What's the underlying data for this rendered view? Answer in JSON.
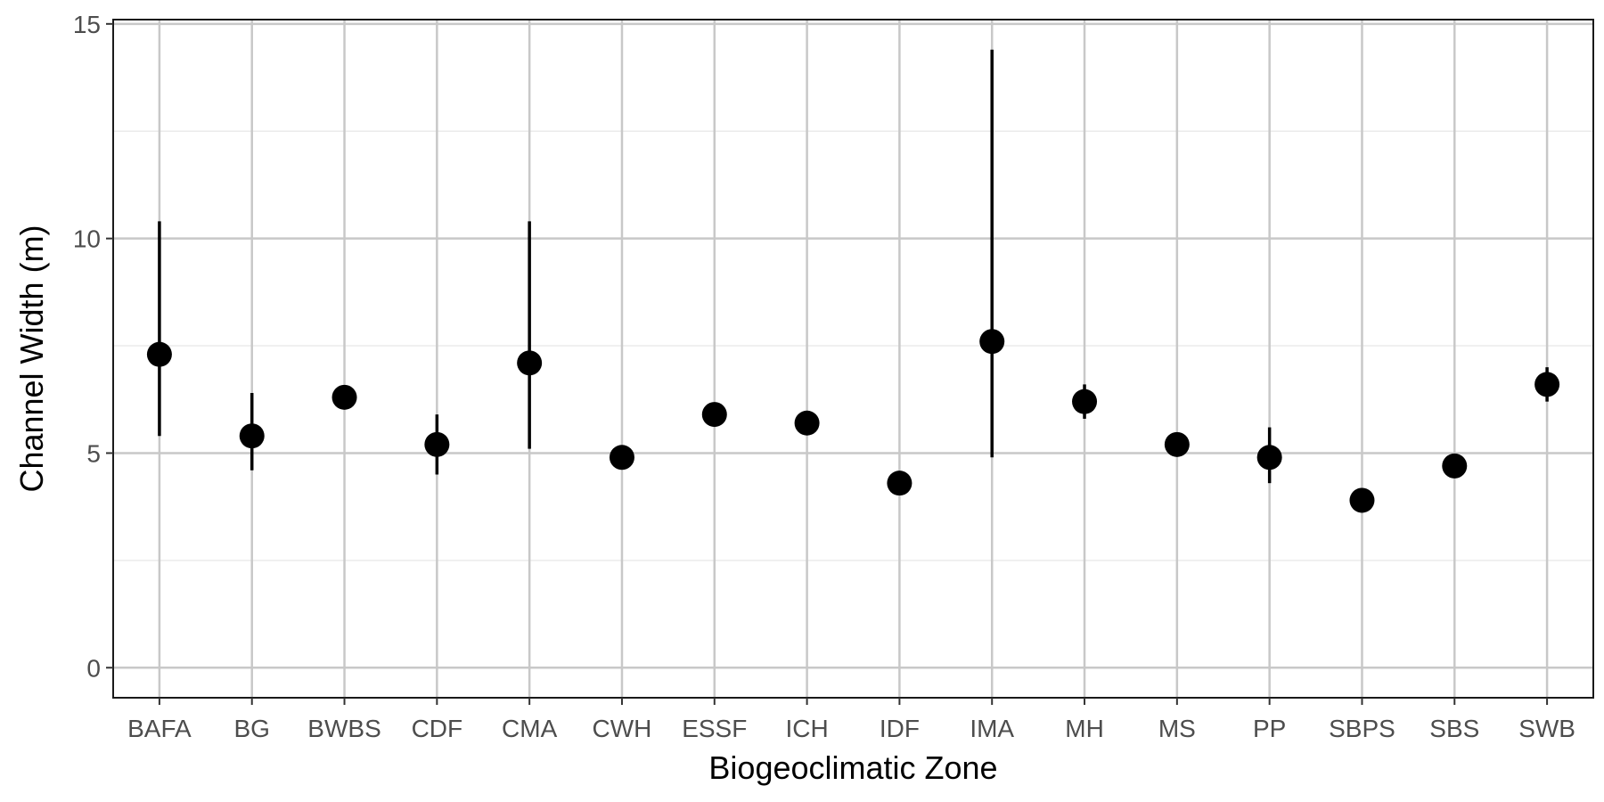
{
  "chart_data": {
    "type": "scatter",
    "title": "",
    "xlabel": "Biogeoclimatic Zone",
    "ylabel": "Channel Width (m)",
    "ylim": [
      -0.7,
      15.1
    ],
    "yticks": [
      0,
      5,
      10,
      15
    ],
    "grid": true,
    "categories": [
      "BAFA",
      "BG",
      "BWBS",
      "CDF",
      "CMA",
      "CWH",
      "ESSF",
      "ICH",
      "IDF",
      "IMA",
      "MH",
      "MS",
      "PP",
      "SBPS",
      "SBS",
      "SWB"
    ],
    "values": [
      7.3,
      5.4,
      6.3,
      5.2,
      7.1,
      4.9,
      5.9,
      5.7,
      4.3,
      7.6,
      6.2,
      5.2,
      4.9,
      3.9,
      4.7,
      6.6
    ],
    "error_low": [
      5.4,
      4.6,
      null,
      4.5,
      5.1,
      null,
      null,
      null,
      null,
      4.9,
      5.8,
      null,
      4.3,
      null,
      null,
      6.2
    ],
    "error_high": [
      10.4,
      6.4,
      null,
      5.9,
      10.4,
      null,
      null,
      null,
      null,
      14.4,
      6.6,
      null,
      5.6,
      null,
      null,
      7.0
    ],
    "colors": {
      "point": "#000000",
      "grid_major": "#c8c8c8",
      "grid_minor": "#ebebeb",
      "panel_border": "#1a1a1a",
      "tick_text": "#4d4d4d"
    }
  }
}
